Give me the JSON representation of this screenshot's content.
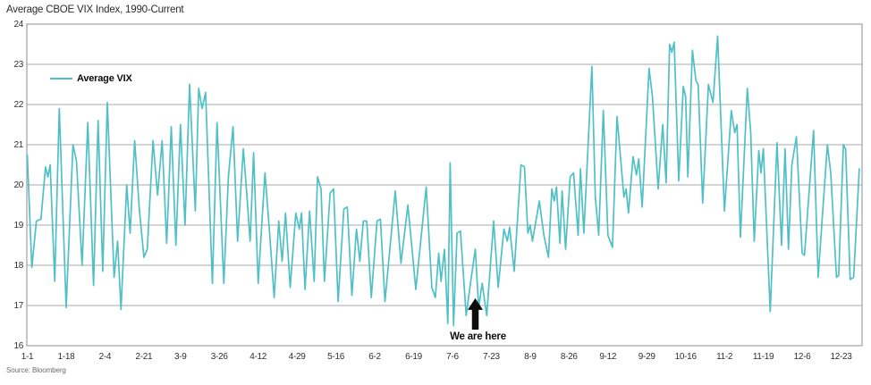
{
  "title": "Average CBOE VIX Index, 1990-Current",
  "source": "Source: Bloomberg",
  "legend": {
    "label": "Average VIX"
  },
  "colors": {
    "line": "#4fc0c6",
    "grid": "#a9a9a9",
    "border": "#9f9f9f",
    "text": "#2f2f2f",
    "annotation": "#0d0d0d"
  },
  "chart_data": {
    "type": "line",
    "title": "Average CBOE VIX Index, 1990-Current",
    "xlabel": "",
    "ylabel": "",
    "ylim": [
      16,
      24
    ],
    "y_ticks": [
      16,
      17,
      18,
      19,
      20,
      21,
      22,
      23,
      24
    ],
    "grid": "horizontal",
    "legend_position": "top-left-inside",
    "x_ticks": [
      {
        "label": "1-1",
        "day": 0
      },
      {
        "label": "1-18",
        "day": 17
      },
      {
        "label": "2-4",
        "day": 34
      },
      {
        "label": "2-21",
        "day": 51
      },
      {
        "label": "3-9",
        "day": 67
      },
      {
        "label": "3-26",
        "day": 84
      },
      {
        "label": "4-12",
        "day": 101
      },
      {
        "label": "4-29",
        "day": 118
      },
      {
        "label": "5-16",
        "day": 135
      },
      {
        "label": "6-2",
        "day": 152
      },
      {
        "label": "6-19",
        "day": 169
      },
      {
        "label": "7-6",
        "day": 186
      },
      {
        "label": "7-23",
        "day": 203
      },
      {
        "label": "8-9",
        "day": 220
      },
      {
        "label": "8-26",
        "day": 237
      },
      {
        "label": "9-12",
        "day": 254
      },
      {
        "label": "9-29",
        "day": 271
      },
      {
        "label": "10-16",
        "day": 288
      },
      {
        "label": "11-2",
        "day": 305
      },
      {
        "label": "11-19",
        "day": 322
      },
      {
        "label": "12-6",
        "day": 339
      },
      {
        "label": "12-23",
        "day": 356
      }
    ],
    "x_range_days": [
      0,
      365
    ],
    "annotation": {
      "text": "We are here",
      "day": 196,
      "tip_value": 17.18,
      "base_value": 16.4
    },
    "series": [
      {
        "name": "Average VIX",
        "points": [
          [
            0,
            20.75
          ],
          [
            2,
            17.95
          ],
          [
            4,
            19.1
          ],
          [
            6,
            19.15
          ],
          [
            8,
            20.45
          ],
          [
            9,
            20.2
          ],
          [
            10,
            20.5
          ],
          [
            12,
            17.6
          ],
          [
            14,
            21.9
          ],
          [
            17,
            16.95
          ],
          [
            20,
            21
          ],
          [
            21.5,
            20.6
          ],
          [
            24,
            18
          ],
          [
            26.5,
            21.55
          ],
          [
            29,
            17.5
          ],
          [
            31,
            21.6
          ],
          [
            33,
            17.85
          ],
          [
            35,
            22.05
          ],
          [
            38,
            17.7
          ],
          [
            39.5,
            18.6
          ],
          [
            41,
            16.9
          ],
          [
            43.5,
            20
          ],
          [
            45,
            18.8
          ],
          [
            47,
            21.1
          ],
          [
            49,
            19.4
          ],
          [
            51,
            18.2
          ],
          [
            52.5,
            18.4
          ],
          [
            55,
            21.1
          ],
          [
            57,
            19.75
          ],
          [
            59,
            21.1
          ],
          [
            61,
            18.55
          ],
          [
            63,
            21.45
          ],
          [
            65,
            18.5
          ],
          [
            67,
            21.5
          ],
          [
            69,
            19
          ],
          [
            71,
            22.5
          ],
          [
            73.5,
            19.35
          ],
          [
            75,
            22.4
          ],
          [
            76.5,
            21.9
          ],
          [
            78,
            22.3
          ],
          [
            81,
            17.55
          ],
          [
            83,
            21.55
          ],
          [
            86,
            17.55
          ],
          [
            88,
            20.2
          ],
          [
            90,
            21.45
          ],
          [
            92,
            18.6
          ],
          [
            94.5,
            20.9
          ],
          [
            96,
            19.8
          ],
          [
            97.5,
            18.6
          ],
          [
            99,
            20.8
          ],
          [
            101,
            17.55
          ],
          [
            104,
            20.3
          ],
          [
            106,
            18.8
          ],
          [
            108,
            17.2
          ],
          [
            110,
            19.1
          ],
          [
            111.5,
            18.1
          ],
          [
            113,
            19.3
          ],
          [
            115,
            17.45
          ],
          [
            117.5,
            19.3
          ],
          [
            119,
            18.9
          ],
          [
            120,
            19.3
          ],
          [
            121.5,
            17.4
          ],
          [
            123.5,
            19.35
          ],
          [
            125.5,
            17.6
          ],
          [
            127,
            20.2
          ],
          [
            128.5,
            19.9
          ],
          [
            130,
            17.6
          ],
          [
            132.5,
            19.8
          ],
          [
            134,
            19.9
          ],
          [
            136,
            17.1
          ],
          [
            138.5,
            19.4
          ],
          [
            140,
            19.45
          ],
          [
            142,
            17.25
          ],
          [
            144,
            18.9
          ],
          [
            145.5,
            18.1
          ],
          [
            147,
            19.1
          ],
          [
            148.5,
            19.1
          ],
          [
            150.5,
            17.2
          ],
          [
            153,
            19.1
          ],
          [
            154.5,
            19.15
          ],
          [
            156.5,
            17.1
          ],
          [
            161,
            19.85
          ],
          [
            163.5,
            18.05
          ],
          [
            166.5,
            19.5
          ],
          [
            170,
            17.4
          ],
          [
            174.5,
            19.95
          ],
          [
            177,
            17.45
          ],
          [
            178.5,
            17.2
          ],
          [
            180,
            18.3
          ],
          [
            181,
            17.6
          ],
          [
            182.5,
            18.4
          ],
          [
            184,
            16.55
          ],
          [
            185,
            20.55
          ],
          [
            186.5,
            16.5
          ],
          [
            188,
            18.8
          ],
          [
            189.5,
            18.85
          ],
          [
            192,
            16.75
          ],
          [
            194,
            17.6
          ],
          [
            196,
            18.4
          ],
          [
            197.5,
            16.95
          ],
          [
            199,
            17.55
          ],
          [
            201,
            16.75
          ],
          [
            204,
            19.1
          ],
          [
            206,
            17.45
          ],
          [
            208.5,
            18.9
          ],
          [
            210,
            18.6
          ],
          [
            211,
            18.95
          ],
          [
            213,
            17.85
          ],
          [
            216,
            20.5
          ],
          [
            217.5,
            20.45
          ],
          [
            219,
            18.8
          ],
          [
            220,
            19
          ],
          [
            221,
            18.6
          ],
          [
            224,
            19.6
          ],
          [
            226,
            18.75
          ],
          [
            228,
            18.2
          ],
          [
            229.5,
            19.9
          ],
          [
            230.5,
            19.6
          ],
          [
            231.5,
            19.95
          ],
          [
            233,
            18.55
          ],
          [
            234,
            19.85
          ],
          [
            235.5,
            18.4
          ],
          [
            237.5,
            20.2
          ],
          [
            239,
            20.3
          ],
          [
            241,
            18.75
          ],
          [
            242,
            20.4
          ],
          [
            243.5,
            18.8
          ],
          [
            247,
            22.95
          ],
          [
            248.5,
            19.7
          ],
          [
            250,
            18.75
          ],
          [
            252,
            21.85
          ],
          [
            254,
            18.75
          ],
          [
            256,
            18.45
          ],
          [
            258,
            21.7
          ],
          [
            261,
            19.7
          ],
          [
            262,
            19.9
          ],
          [
            263,
            19.3
          ],
          [
            265,
            20.7
          ],
          [
            266.5,
            20.25
          ],
          [
            267.5,
            20.65
          ],
          [
            269,
            19.45
          ],
          [
            272,
            22.9
          ],
          [
            273.5,
            22.2
          ],
          [
            276,
            19.9
          ],
          [
            278,
            21.5
          ],
          [
            279.5,
            20.05
          ],
          [
            281,
            23.5
          ],
          [
            282,
            23.3
          ],
          [
            283,
            23.55
          ],
          [
            285,
            20.1
          ],
          [
            287,
            22.45
          ],
          [
            288,
            22.2
          ],
          [
            289,
            20.2
          ],
          [
            291,
            23.35
          ],
          [
            292.5,
            22.6
          ],
          [
            293.5,
            22.5
          ],
          [
            295.5,
            19.55
          ],
          [
            298,
            22.5
          ],
          [
            300,
            22.05
          ],
          [
            302,
            23.7
          ],
          [
            305,
            19.35
          ],
          [
            308,
            21.85
          ],
          [
            309.5,
            21.3
          ],
          [
            310.5,
            21.5
          ],
          [
            312,
            18.7
          ],
          [
            315,
            22.4
          ],
          [
            316.5,
            21.3
          ],
          [
            318,
            18.6
          ],
          [
            320,
            20.85
          ],
          [
            321,
            20.3
          ],
          [
            322,
            20.9
          ],
          [
            325,
            16.85
          ],
          [
            328,
            21.05
          ],
          [
            330,
            18.5
          ],
          [
            331.5,
            20.9
          ],
          [
            333,
            18.4
          ],
          [
            334.5,
            20.5
          ],
          [
            336.5,
            21.2
          ],
          [
            339,
            18.3
          ],
          [
            340,
            18.25
          ],
          [
            344,
            21.35
          ],
          [
            346,
            17.7
          ],
          [
            350,
            21
          ],
          [
            351.5,
            20.3
          ],
          [
            354,
            17.7
          ],
          [
            355,
            17.75
          ],
          [
            357,
            21
          ],
          [
            358,
            20.9
          ],
          [
            360,
            17.65
          ],
          [
            361.5,
            17.7
          ],
          [
            364,
            20.4
          ]
        ]
      }
    ]
  }
}
